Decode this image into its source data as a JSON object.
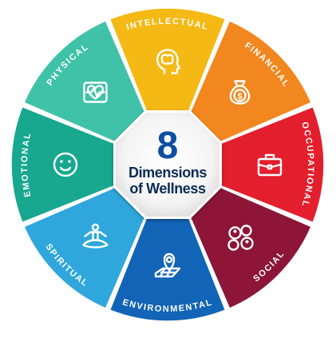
{
  "center": {
    "number": "8",
    "line1": "Dimensions",
    "line2": "of Wellness"
  },
  "dimensions": [
    {
      "label": "INTELLECTUAL",
      "color": "#f5b915",
      "icon": "brain-head-icon"
    },
    {
      "label": "FINANCIAL",
      "color": "#f2871f",
      "icon": "money-bag-icon"
    },
    {
      "label": "OCCUPATIONAL",
      "color": "#e41f2d",
      "icon": "briefcase-icon"
    },
    {
      "label": "SOCIAL",
      "color": "#8c1538",
      "icon": "people-network-icon"
    },
    {
      "label": "ENVIRONMENTAL",
      "color": "#1264b6",
      "icon": "location-map-icon"
    },
    {
      "label": "SPIRITUAL",
      "color": "#2fa7dc",
      "icon": "meditation-icon"
    },
    {
      "label": "EMOTIONAL",
      "color": "#17a88f",
      "icon": "smiley-face-icon"
    },
    {
      "label": "PHYSICAL",
      "color": "#40c2a8",
      "icon": "heart-monitor-icon"
    }
  ]
}
